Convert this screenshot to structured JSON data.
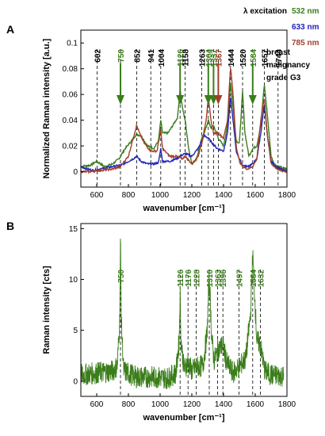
{
  "legend": {
    "title": "λ excitation",
    "items": [
      {
        "label": "532 nm",
        "color": "#3a7d1a"
      },
      {
        "label": "633 nm",
        "color": "#2222bb"
      },
      {
        "label": "785 nm",
        "color": "#a0402a"
      }
    ]
  },
  "colors": {
    "green": "#3a7d1a",
    "blue": "#2222bb",
    "brown": "#a0402a",
    "pink": "#e8a8c8",
    "red": "#dd2222"
  },
  "chart_data": [
    {
      "panel": "A",
      "type": "line",
      "xlabel": "wavenumber [cm⁻¹]",
      "ylabel": "Normalized Raman intensity [a.u.]",
      "xlim": [
        500,
        1800
      ],
      "ylim": [
        -0.012,
        0.11
      ],
      "xticks": [
        600,
        800,
        1000,
        1200,
        1400,
        1600,
        1800
      ],
      "yticks": [
        0,
        0.02,
        0.04,
        0.06,
        0.08,
        0.1
      ],
      "ytick_labels": [
        "0",
        "0.02",
        "0.04",
        "0.06",
        "0.08",
        "0.1"
      ],
      "grid": false,
      "legend": "top-right",
      "annotation": [
        "breast",
        "malignancy",
        "grade G3"
      ],
      "peaks": [
        {
          "x": 602,
          "label": "602",
          "color": "black",
          "arrow": false
        },
        {
          "x": 750,
          "label": "750",
          "color": "green",
          "arrow": true
        },
        {
          "x": 852,
          "label": "852",
          "color": "black",
          "arrow": false
        },
        {
          "x": 941,
          "label": "941",
          "color": "black",
          "arrow": false
        },
        {
          "x": 1004,
          "label": "1004",
          "color": "black",
          "arrow": false
        },
        {
          "x": 1126,
          "label": "1126",
          "color": "green",
          "arrow": true
        },
        {
          "x": 1158,
          "label": "1158",
          "color": "black",
          "arrow": false
        },
        {
          "x": 1263,
          "label": "1263",
          "color": "black",
          "arrow": false
        },
        {
          "x": 1304,
          "label": "1304",
          "color": "green",
          "arrow": true
        },
        {
          "x": 1337,
          "label": "1337",
          "color": "green",
          "arrow": true
        },
        {
          "x": 1367,
          "label": "1367",
          "color": "brown",
          "arrow": true
        },
        {
          "x": 1444,
          "label": "1444",
          "color": "black",
          "arrow": false
        },
        {
          "x": 1520,
          "label": "1520",
          "color": "black",
          "arrow": false
        },
        {
          "x": 1584,
          "label": "1584",
          "color": "green",
          "arrow": true
        },
        {
          "x": 1657,
          "label": "1657",
          "color": "black",
          "arrow": false
        },
        {
          "x": 1744,
          "label": "1744",
          "color": "black",
          "arrow": false
        }
      ],
      "series": [
        {
          "name": "532 nm",
          "color": "green",
          "points": [
            [
              500,
              0.004
            ],
            [
              560,
              0.005
            ],
            [
              600,
              0.008
            ],
            [
              650,
              0.004
            ],
            [
              700,
              0.006
            ],
            [
              740,
              0.01
            ],
            [
              780,
              0.018
            ],
            [
              820,
              0.024
            ],
            [
              850,
              0.029
            ],
            [
              880,
              0.028
            ],
            [
              920,
              0.02
            ],
            [
              960,
              0.018
            ],
            [
              990,
              0.024
            ],
            [
              1004,
              0.04
            ],
            [
              1015,
              0.03
            ],
            [
              1050,
              0.03
            ],
            [
              1080,
              0.036
            ],
            [
              1110,
              0.042
            ],
            [
              1126,
              0.064
            ],
            [
              1140,
              0.05
            ],
            [
              1158,
              0.04
            ],
            [
              1180,
              0.018
            ],
            [
              1200,
              0.006
            ],
            [
              1230,
              0.01
            ],
            [
              1263,
              0.026
            ],
            [
              1290,
              0.034
            ],
            [
              1304,
              0.04
            ],
            [
              1320,
              0.034
            ],
            [
              1337,
              0.036
            ],
            [
              1367,
              0.026
            ],
            [
              1400,
              0.02
            ],
            [
              1425,
              0.036
            ],
            [
              1444,
              0.07
            ],
            [
              1460,
              0.05
            ],
            [
              1480,
              0.024
            ],
            [
              1500,
              0.022
            ],
            [
              1520,
              0.062
            ],
            [
              1535,
              0.03
            ],
            [
              1560,
              0.012
            ],
            [
              1584,
              0.018
            ],
            [
              1610,
              0.02
            ],
            [
              1635,
              0.036
            ],
            [
              1657,
              0.068
            ],
            [
              1675,
              0.046
            ],
            [
              1700,
              0.012
            ],
            [
              1720,
              0.006
            ],
            [
              1744,
              0.004
            ],
            [
              1770,
              0.003
            ],
            [
              1800,
              0.002
            ]
          ]
        },
        {
          "name": "633 nm",
          "color": "blue",
          "points": [
            [
              500,
              0.004
            ],
            [
              540,
              0.002
            ],
            [
              580,
              0.001
            ],
            [
              620,
              0.002
            ],
            [
              660,
              0.003
            ],
            [
              700,
              0.004
            ],
            [
              750,
              0.005
            ],
            [
              800,
              0.008
            ],
            [
              830,
              0.01
            ],
            [
              852,
              0.012
            ],
            [
              880,
              0.008
            ],
            [
              920,
              0.006
            ],
            [
              960,
              0.006
            ],
            [
              990,
              0.007
            ],
            [
              1004,
              0.018
            ],
            [
              1015,
              0.008
            ],
            [
              1060,
              0.008
            ],
            [
              1100,
              0.01
            ],
            [
              1140,
              0.013
            ],
            [
              1158,
              0.014
            ],
            [
              1200,
              0.012
            ],
            [
              1240,
              0.018
            ],
            [
              1263,
              0.024
            ],
            [
              1280,
              0.028
            ],
            [
              1304,
              0.026
            ],
            [
              1330,
              0.022
            ],
            [
              1360,
              0.018
            ],
            [
              1400,
              0.016
            ],
            [
              1425,
              0.03
            ],
            [
              1444,
              0.058
            ],
            [
              1460,
              0.04
            ],
            [
              1480,
              0.016
            ],
            [
              1500,
              0.01
            ],
            [
              1520,
              0.005
            ],
            [
              1550,
              0.004
            ],
            [
              1584,
              0.006
            ],
            [
              1610,
              0.01
            ],
            [
              1635,
              0.03
            ],
            [
              1657,
              0.052
            ],
            [
              1675,
              0.03
            ],
            [
              1700,
              0.008
            ],
            [
              1740,
              0.003
            ],
            [
              1800,
              0.0
            ]
          ]
        },
        {
          "name": "785 nm",
          "color": "brown",
          "points": [
            [
              500,
              0.0
            ],
            [
              560,
              0.0
            ],
            [
              620,
              0.001
            ],
            [
              700,
              0.002
            ],
            [
              750,
              0.004
            ],
            [
              800,
              0.012
            ],
            [
              830,
              0.026
            ],
            [
              852,
              0.036
            ],
            [
              870,
              0.03
            ],
            [
              900,
              0.022
            ],
            [
              941,
              0.016
            ],
            [
              980,
              0.016
            ],
            [
              1004,
              0.032
            ],
            [
              1015,
              0.018
            ],
            [
              1060,
              0.012
            ],
            [
              1100,
              0.012
            ],
            [
              1140,
              0.01
            ],
            [
              1158,
              0.012
            ],
            [
              1200,
              0.006
            ],
            [
              1240,
              0.012
            ],
            [
              1263,
              0.022
            ],
            [
              1290,
              0.04
            ],
            [
              1304,
              0.058
            ],
            [
              1320,
              0.04
            ],
            [
              1337,
              0.03
            ],
            [
              1367,
              0.03
            ],
            [
              1400,
              0.026
            ],
            [
              1425,
              0.04
            ],
            [
              1444,
              0.082
            ],
            [
              1460,
              0.06
            ],
            [
              1480,
              0.02
            ],
            [
              1500,
              0.008
            ],
            [
              1520,
              0.004
            ],
            [
              1550,
              0.002
            ],
            [
              1584,
              0.004
            ],
            [
              1610,
              0.01
            ],
            [
              1635,
              0.04
            ],
            [
              1657,
              0.058
            ],
            [
              1675,
              0.03
            ],
            [
              1700,
              0.006
            ],
            [
              1750,
              0.001
            ],
            [
              1800,
              0.0
            ]
          ]
        }
      ]
    },
    {
      "panel": "B",
      "type": "line",
      "xlabel": "wavenumber [cm⁻¹]",
      "ylabel": "Raman intensity [cts]",
      "xlim": [
        500,
        1800
      ],
      "ylim": [
        -1.5,
        15.5
      ],
      "xticks": [
        600,
        800,
        1000,
        1200,
        1400,
        1600,
        1800
      ],
      "yticks": [
        0,
        5,
        10,
        15
      ],
      "ytick_labels": [
        "0",
        "5",
        "10",
        "15"
      ],
      "grid": false,
      "peaks": [
        {
          "x": 750,
          "label": "750"
        },
        {
          "x": 1126,
          "label": "1126"
        },
        {
          "x": 1176,
          "label": "1176"
        },
        {
          "x": 1228,
          "label": "1228"
        },
        {
          "x": 1310,
          "label": "1310"
        },
        {
          "x": 1363,
          "label": "1363"
        },
        {
          "x": 1396,
          "label": "1396"
        },
        {
          "x": 1497,
          "label": "1497"
        },
        {
          "x": 1584,
          "label": "1584"
        },
        {
          "x": 1632,
          "label": "1632"
        }
      ],
      "series": [
        {
          "color": "green",
          "points": [
            [
              500,
              0.6
            ],
            [
              600,
              0.8
            ],
            [
              700,
              1.0
            ],
            [
              730,
              1.5
            ],
            [
              745,
              6.0
            ],
            [
              750,
              14.2
            ],
            [
              755,
              6.0
            ],
            [
              770,
              1.0
            ],
            [
              850,
              0.4
            ],
            [
              950,
              0.4
            ],
            [
              1050,
              0.3
            ],
            [
              1100,
              0.8
            ],
            [
              1120,
              4.0
            ],
            [
              1126,
              8.8
            ],
            [
              1132,
              4.0
            ],
            [
              1150,
              1.2
            ],
            [
              1176,
              1.8
            ],
            [
              1200,
              1.0
            ],
            [
              1228,
              1.4
            ],
            [
              1270,
              1.5
            ],
            [
              1295,
              4.5
            ],
            [
              1310,
              10.4
            ],
            [
              1325,
              4.5
            ],
            [
              1340,
              2.0
            ],
            [
              1363,
              3.0
            ],
            [
              1396,
              3.6
            ],
            [
              1420,
              1.8
            ],
            [
              1460,
              0.8
            ],
            [
              1497,
              1.4
            ],
            [
              1540,
              2.2
            ],
            [
              1570,
              6.5
            ],
            [
              1584,
              12.4
            ],
            [
              1595,
              9.0
            ],
            [
              1610,
              4.0
            ],
            [
              1632,
              3.6
            ],
            [
              1660,
              1.0
            ],
            [
              1700,
              0.6
            ],
            [
              1780,
              0.5
            ]
          ]
        }
      ]
    }
  ]
}
